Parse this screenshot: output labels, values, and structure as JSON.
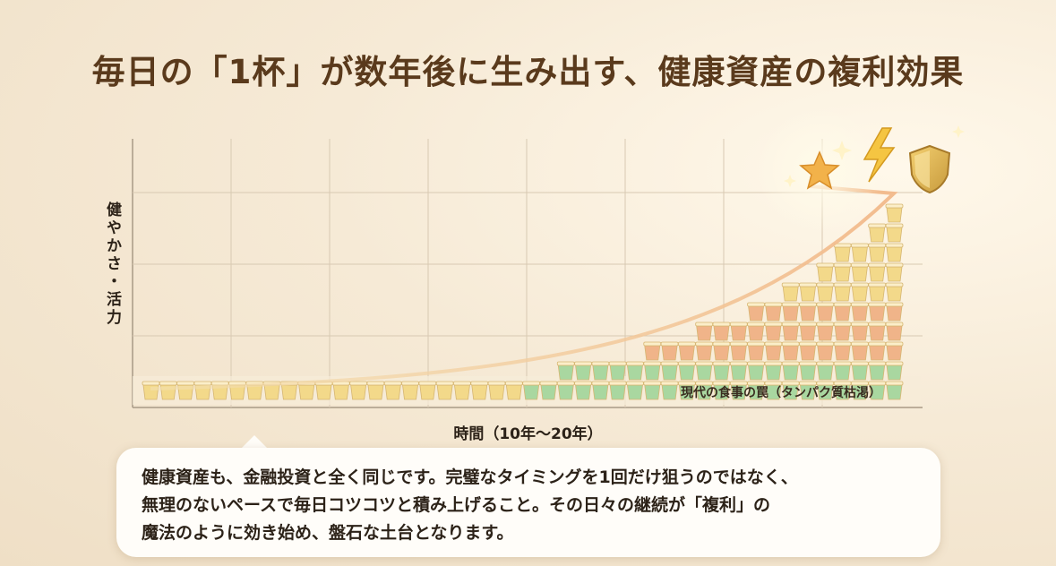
{
  "title": "毎日の「1杯」が数年後に生み出す、健康資産の複利効果",
  "chart_data": {
    "type": "area",
    "title": "毎日の「1杯」が数年後に生み出す、健康資産の複利効果",
    "ylabel": "健やかさ・活力",
    "xlabel": "時間（10年〜20年）",
    "baseline_label": "現代の食事の罠（タンパク質枯渇）",
    "curve": "exponential growth",
    "icons": [
      "star-icon",
      "lightning-icon",
      "shield-icon"
    ],
    "grid": true,
    "colors": {
      "yellow": "#f3d98a",
      "orange": "#f0b489",
      "green": "#a9d7a0",
      "curve": "#e9b98a"
    }
  },
  "message": "健康資産も、金融投資と全く同じです。完璧なタイミングを1回だけ狙うのではなく、\n無理のないペースで毎日コツコツと積み上げること。その日々の継続が「複利」の\n魔法のように効き始め、盤石な土台となります。"
}
